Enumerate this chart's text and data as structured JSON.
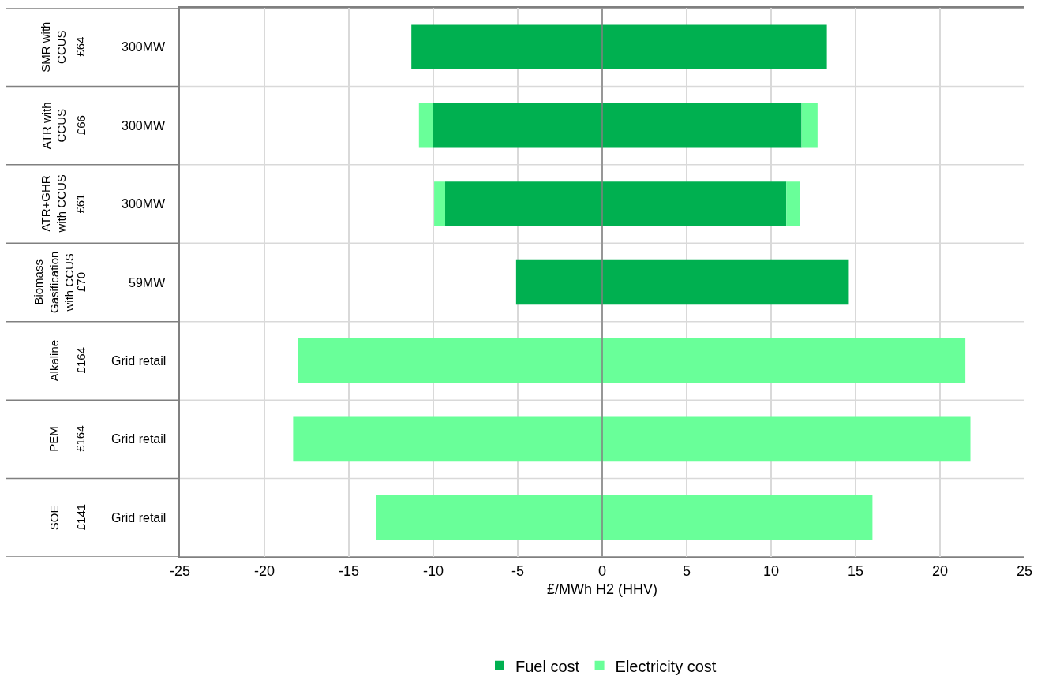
{
  "chart_data": {
    "type": "bar",
    "orientation": "horizontal",
    "stacked": true,
    "categories": [
      "SMR with CCUS",
      "ATR with CCUS",
      "ATR+GHR with CCUS",
      "Biomass Gasification with CCUS",
      "Alkaline",
      "PEM",
      "SOE"
    ],
    "series": [
      {
        "name": "Fuel cost",
        "color": "#00b050",
        "values": [
          -11.3,
          -10.0,
          -9.3,
          -5.1,
          null,
          null,
          null
        ]
      },
      {
        "color": "#00b050",
        "values": [
          13.3,
          11.8,
          10.9,
          14.6,
          null,
          null,
          null
        ]
      },
      {
        "name": "Electricity cost",
        "color": "#69ff99",
        "values": [
          null,
          -0.85,
          -0.65,
          null,
          -18.0,
          -18.3,
          -13.4
        ]
      },
      {
        "color": "#69ff99",
        "values": [
          null,
          0.95,
          0.8,
          null,
          21.5,
          21.8,
          16.0
        ]
      }
    ],
    "xlabel": "£/MWh H2 (HHV)",
    "xlim": [
      -25,
      25
    ],
    "xticks": [
      -25,
      -20,
      -15,
      -10,
      -5,
      0,
      5,
      10,
      15,
      20,
      25
    ],
    "ref_lines": [
      {
        "axis": "x",
        "value": 0,
        "color": "#808080"
      }
    ],
    "annotations": [
      "£64",
      "300MW",
      "£66",
      "300MW",
      "£61",
      "300MW",
      "£70",
      "59MW",
      "£164",
      "Grid retail",
      "£164",
      "Grid retail",
      "£141",
      "Grid retail"
    ],
    "grid": true,
    "legend": "bottom"
  }
}
